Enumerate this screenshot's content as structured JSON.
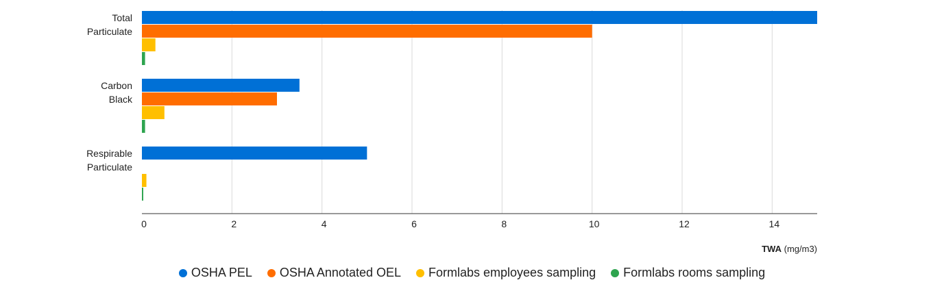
{
  "chart_data": {
    "type": "bar",
    "orientation": "horizontal",
    "categories": [
      [
        "Total",
        "Particulate"
      ],
      [
        "Carbon",
        "Black"
      ],
      [
        "Respirable",
        "Particulate"
      ]
    ],
    "series": [
      {
        "name": "OSHA PEL",
        "color": "#0070d6",
        "values": [
          15,
          3.5,
          5
        ]
      },
      {
        "name": "OSHA Annotated OEL",
        "color": "#ff6d00",
        "values": [
          10,
          3,
          0
        ]
      },
      {
        "name": "Formlabs employees sampling",
        "color": "#ffbf00",
        "values": [
          0.3,
          0.5,
          0.1
        ]
      },
      {
        "name": "Formlabs rooms sampling",
        "color": "#2ea44f",
        "values": [
          0.07,
          0.07,
          0.03
        ]
      }
    ],
    "xlim": [
      0,
      15
    ],
    "xticks": [
      0,
      2,
      4,
      6,
      8,
      10,
      12,
      14
    ],
    "xlabel_bold": "TWA",
    "xlabel_rest": " (mg/m3)",
    "grid": true,
    "legend_position": "bottom"
  }
}
